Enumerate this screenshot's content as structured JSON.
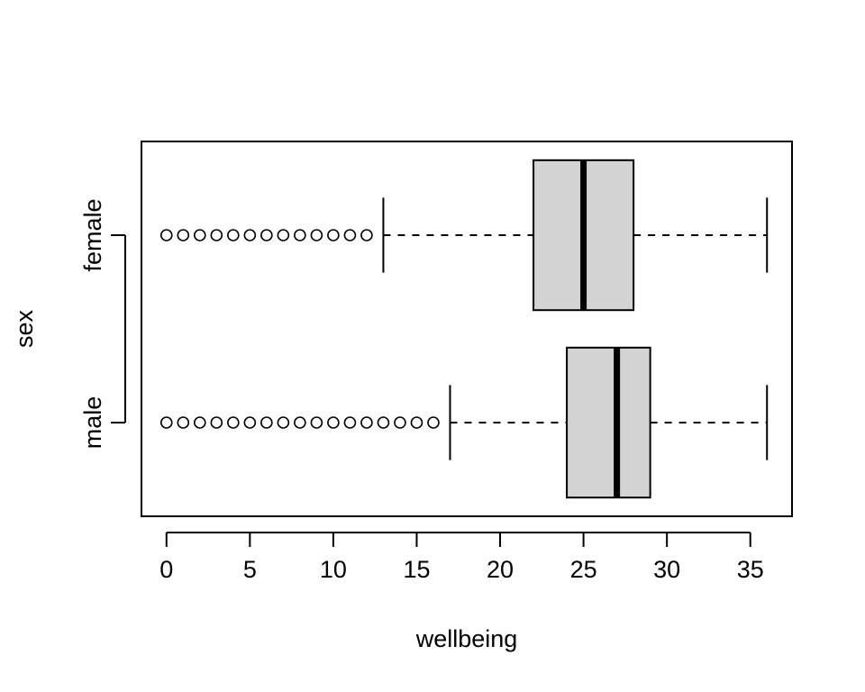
{
  "chart_data": {
    "type": "boxplot",
    "orientation": "horizontal",
    "title": "",
    "xlabel": "wellbeing",
    "ylabel": "sex",
    "xlim": [
      -1.5,
      37.5
    ],
    "x_ticks": [
      0,
      5,
      10,
      15,
      20,
      25,
      30,
      35
    ],
    "x_tick_labels": [
      "0",
      "5",
      "10",
      "15",
      "20",
      "25",
      "30",
      "35"
    ],
    "categories": [
      "male",
      "female"
    ],
    "box_fill": "#d3d3d3",
    "line_color": "#000000",
    "boxes": [
      {
        "category": "male",
        "whisker_low": 17,
        "q1": 24,
        "median": 27,
        "q3": 29,
        "whisker_high": 36,
        "outliers": [
          0,
          1,
          2,
          3,
          4,
          5,
          6,
          7,
          8,
          9,
          10,
          11,
          12,
          13,
          14,
          15,
          16
        ]
      },
      {
        "category": "female",
        "whisker_low": 13,
        "q1": 22,
        "median": 25,
        "q3": 28,
        "whisker_high": 36,
        "outliers": [
          0,
          1,
          2,
          3,
          4,
          5,
          6,
          7,
          8,
          9,
          10,
          11,
          12
        ]
      }
    ]
  }
}
